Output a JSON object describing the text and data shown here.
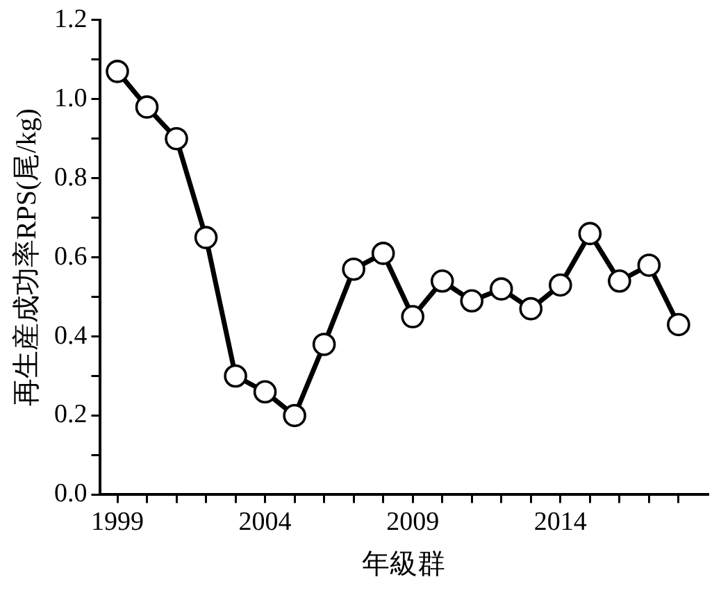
{
  "chart_data": {
    "type": "line",
    "xlabel": "年級群",
    "ylabel": "再生産成功率RPS(尾/kg)",
    "x": [
      1999,
      2000,
      2001,
      2002,
      2003,
      2004,
      2005,
      2006,
      2007,
      2008,
      2009,
      2010,
      2011,
      2012,
      2013,
      2014,
      2015,
      2016,
      2017,
      2018
    ],
    "series": [
      {
        "color": "#000000",
        "values": [
          1.07,
          0.98,
          0.9,
          0.65,
          0.3,
          0.26,
          0.2,
          0.38,
          0.57,
          0.61,
          0.45,
          0.54,
          0.49,
          0.52,
          0.47,
          0.53,
          0.66,
          0.54,
          0.58,
          0.43
        ]
      }
    ],
    "xlim": [
      1998.4,
      2019
    ],
    "xticks": [
      1999,
      {
        "value": 2000,
        "label": null
      },
      {
        "value": 2001,
        "label": null
      },
      {
        "value": 2002,
        "label": null
      },
      {
        "value": 2003,
        "label": null
      },
      2004,
      {
        "value": 2005,
        "label": null
      },
      {
        "value": 2006,
        "label": null
      },
      {
        "value": 2007,
        "label": null
      },
      {
        "value": 2008,
        "label": null
      },
      2009,
      {
        "value": 2010,
        "label": null
      },
      {
        "value": 2011,
        "label": null
      },
      {
        "value": 2012,
        "label": null
      },
      {
        "value": 2013,
        "label": null
      },
      2014,
      {
        "value": 2015,
        "label": null
      },
      {
        "value": 2016,
        "label": null
      },
      {
        "value": 2017,
        "label": null
      },
      {
        "value": 2018,
        "label": null
      }
    ],
    "ylim": [
      0,
      1.2
    ],
    "yticks": [
      {
        "value": 0,
        "label": "0.0"
      },
      {
        "value": 0.1,
        "label": null
      },
      {
        "value": 0.2,
        "label": "0.2"
      },
      {
        "value": 0.3,
        "label": null
      },
      {
        "value": 0.4,
        "label": "0.4"
      },
      {
        "value": 0.5,
        "label": null
      },
      {
        "value": 0.6,
        "label": "0.6"
      },
      {
        "value": 0.7,
        "label": null
      },
      {
        "value": 0.8,
        "label": "0.8"
      },
      {
        "value": 0.9,
        "label": null
      },
      {
        "value": 1,
        "label": "1.0"
      },
      {
        "value": 1.1,
        "label": null
      },
      {
        "value": 1.2,
        "label": "1.2"
      }
    ],
    "grid": false,
    "legend": false,
    "marker": "circle",
    "line_style": "solid"
  }
}
